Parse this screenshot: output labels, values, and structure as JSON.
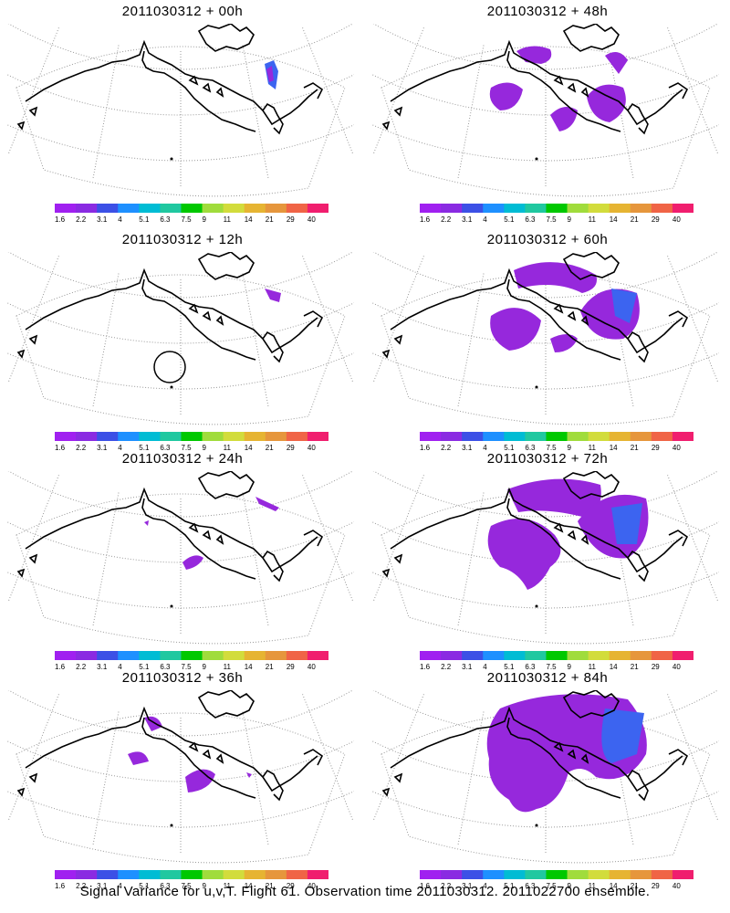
{
  "panels": [
    {
      "title": "2011030312 + 00h",
      "lead": "00h"
    },
    {
      "title": "2011030312 + 48h",
      "lead": "48h"
    },
    {
      "title": "2011030312 + 12h",
      "lead": "12h"
    },
    {
      "title": "2011030312 + 60h",
      "lead": "60h"
    },
    {
      "title": "2011030312 + 24h",
      "lead": "24h"
    },
    {
      "title": "2011030312 + 72h",
      "lead": "72h"
    },
    {
      "title": "2011030312 + 36h",
      "lead": "36h"
    },
    {
      "title": "2011030312 + 84h",
      "lead": "84h"
    }
  ],
  "colorbar": {
    "labels": [
      "1.6",
      "2.2",
      "3.1",
      "4",
      "5.1",
      "6.3",
      "7.5",
      "9",
      "11",
      "14",
      "21",
      "29",
      "40"
    ],
    "colors": [
      "#a020f0",
      "#8a2be2",
      "#3c50e6",
      "#1e90ff",
      "#00bcd4",
      "#20c8a0",
      "#00c800",
      "#a0dc3c",
      "#d2dc3c",
      "#e6b432",
      "#e6963c",
      "#f06446",
      "#f01e6e"
    ]
  },
  "footer": "Signal Variance for u,v,T. Flight 61. Observation time 2011030312. 2011022700 ensemble.",
  "colors": {
    "signal_fill": "#9628dc",
    "signal_strong": "#3c64f0",
    "coast": "#000000",
    "grid": "#999999"
  }
}
